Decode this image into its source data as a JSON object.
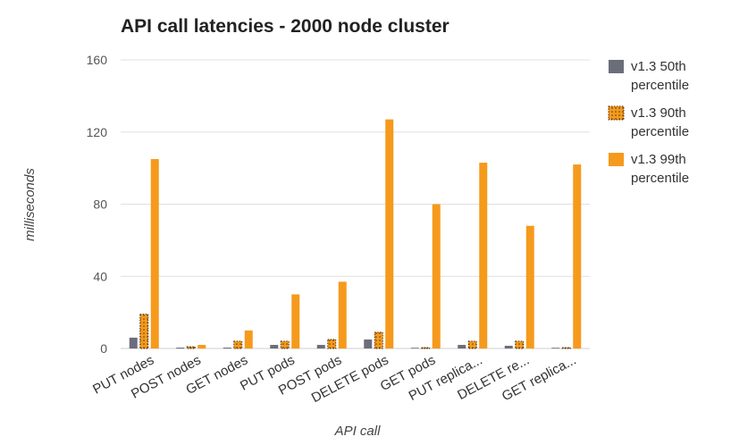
{
  "chart_data": {
    "type": "bar",
    "title": "API call latencies - 2000 node cluster",
    "xlabel": "API call",
    "ylabel": "milliseconds",
    "ylim": [
      0,
      160
    ],
    "yticks": [
      "0",
      "40",
      "80",
      "120",
      "160"
    ],
    "grid": true,
    "legend_position": "right",
    "categories": [
      "PUT nodes",
      "POST nodes",
      "GET nodes",
      "PUT pods",
      "POST pods",
      "DELETE pods",
      "GET pods",
      "PUT replica...",
      "DELETE re...",
      "GET replica..."
    ],
    "series": [
      {
        "name": "v1.3 50th percentile",
        "name_lines": [
          "v1.3 50th",
          "percentile"
        ],
        "color": "#6b6e7a",
        "pattern": "solid",
        "values": [
          6,
          0.5,
          0.5,
          2,
          2,
          5,
          0.3,
          2,
          1.5,
          0.3
        ]
      },
      {
        "name": "v1.3 90th percentile",
        "name_lines": [
          "v1.3 90th",
          "percentile"
        ],
        "color": "#f59a1c",
        "pattern": "dotted",
        "values": [
          19,
          1,
          4,
          4,
          5,
          9,
          0.5,
          4,
          4,
          0.5
        ]
      },
      {
        "name": "v1.3 99th percentile",
        "name_lines": [
          "v1.3 99th",
          "percentile"
        ],
        "color": "#f59a1c",
        "pattern": "solid",
        "values": [
          105,
          2,
          10,
          30,
          37,
          127,
          80,
          103,
          68,
          102
        ]
      }
    ]
  }
}
